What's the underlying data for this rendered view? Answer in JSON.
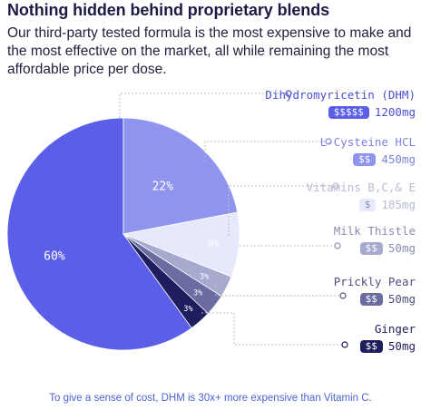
{
  "headline": "Nothing hidden behind proprietary blends",
  "intro": "Our third-party tested formula is the most expensive to make and the most effective on the market, all while remaining the most affordable price per dose.",
  "footer_note": "To give a sense of cost, DHM is 30x+ more expensive than Vitamin C.",
  "ingredients": [
    {
      "name": "Dihydromyricetin (DHM)",
      "cost": "$$$$$",
      "dose": "1200mg",
      "color": "#5b5fe8",
      "text_color": "#4b4fcf"
    },
    {
      "name": "L-Cysteine HCL",
      "cost": "$$",
      "dose": "450mg",
      "color": "#8f95ee",
      "text_color": "#7d83df"
    },
    {
      "name": "Vitamins B,C,& E",
      "cost": "$",
      "dose": "185mg",
      "color": "#e6e8fb",
      "text_color": "#b8bcd2"
    },
    {
      "name": "Milk Thistle",
      "cost": "$$",
      "dose": "50mg",
      "color": "#a7aacf",
      "text_color": "#8a8db4"
    },
    {
      "name": "Prickly Pear",
      "cost": "$$",
      "dose": "50mg",
      "color": "#6b6da2",
      "text_color": "#4d4f80"
    },
    {
      "name": "Ginger",
      "cost": "$$",
      "dose": "50mg",
      "color": "#1e1d5e",
      "text_color": "#1e1d5e"
    }
  ],
  "chart_data": {
    "type": "pie",
    "title": "",
    "slices": [
      {
        "label": "60%",
        "value": 60,
        "color": "#5b5fe8"
      },
      {
        "label": "22%",
        "value": 22,
        "color": "#8f95ee"
      },
      {
        "label": "9%",
        "value": 9,
        "color": "#e6e8fb"
      },
      {
        "label": "3%",
        "value": 3,
        "color": "#a7aacf"
      },
      {
        "label": "3%",
        "value": 3,
        "color": "#6b6da2"
      },
      {
        "label": "3%",
        "value": 3,
        "color": "#1e1d5e"
      }
    ]
  }
}
